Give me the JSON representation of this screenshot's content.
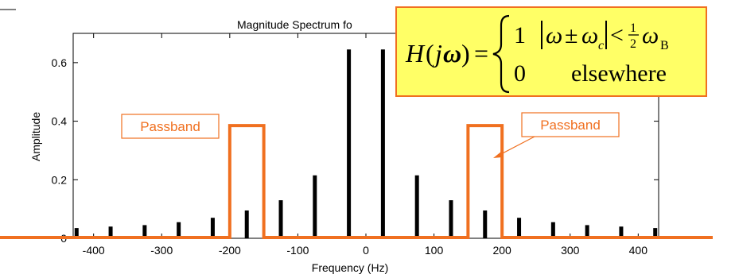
{
  "chart_data": {
    "type": "bar",
    "title": "Magnitude Spectrum fo",
    "xlabel": "Frequency   (Hz)",
    "ylabel": "Amplitude",
    "xlim": [
      -430,
      430
    ],
    "ylim": [
      0,
      0.7
    ],
    "xticks": [
      -400,
      -300,
      -200,
      -100,
      0,
      100,
      200,
      300,
      400
    ],
    "yticks": [
      0,
      0.2,
      0.4,
      0.6
    ],
    "ytick_labels": [
      "0",
      "0.2",
      "0.4",
      "0.6"
    ],
    "grid": false,
    "series": [
      {
        "x": [
          -425,
          -375,
          -325,
          -275,
          -225,
          -175,
          -125,
          -75,
          -25,
          25,
          75,
          125,
          175,
          225,
          275,
          325,
          375,
          425
        ],
        "values": [
          0.035,
          0.04,
          0.045,
          0.055,
          0.07,
          0.095,
          0.13,
          0.215,
          0.645,
          0.645,
          0.215,
          0.13,
          0.095,
          0.07,
          0.055,
          0.045,
          0.04,
          0.035
        ]
      }
    ],
    "filter": {
      "passbands": [
        [
          -200,
          -150
        ],
        [
          150,
          200
        ]
      ],
      "passband_level": 0.385,
      "stopband_level": 0
    },
    "annotations": [
      {
        "text": "Passband",
        "near": "left passband"
      },
      {
        "text": "Passband",
        "near": "right passband"
      }
    ],
    "formula": {
      "lhs_H": "H",
      "lhs_paren_open": "(",
      "lhs_j": "j",
      "lhs_omega": "ω",
      "lhs_paren_close": ")",
      "equals": "=",
      "case1_value": "1",
      "case1_condition_omega": "ω",
      "case1_condition_pm": "±",
      "case1_condition_omega_c": "ω",
      "case1_condition_sub_c": "c",
      "case1_condition_lt": "<",
      "case1_condition_half_num": "1",
      "case1_condition_half_den": "2",
      "case1_condition_omega_b": "ω",
      "case1_condition_sub_b": "B",
      "case2_value": "0",
      "case2_condition": "elsewhere"
    }
  },
  "colors": {
    "filter_line": "#f07020",
    "bars": "#000000",
    "formula_background": "#ffff66",
    "formula_border": "#f07020"
  }
}
